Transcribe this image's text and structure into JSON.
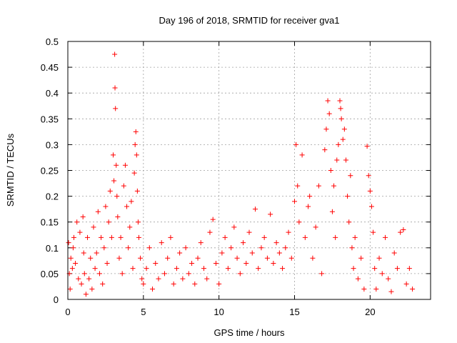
{
  "chart_data": {
    "type": "scatter",
    "title": "Day 196 of 2018, SRMTID for receiver gva1",
    "xlabel": "GPS time / hours",
    "ylabel": "SRMTID / TECUs",
    "xlim": [
      0,
      24
    ],
    "ylim": [
      0,
      0.5
    ],
    "x_ticks": [
      0,
      5,
      10,
      15,
      20
    ],
    "y_ticks": [
      0,
      0.05,
      0.1,
      0.15,
      0.2,
      0.25,
      0.3,
      0.35,
      0.4,
      0.45,
      0.5
    ],
    "x_tick_labels": [
      "0",
      "5",
      "10",
      "15",
      "20"
    ],
    "y_tick_labels": [
      "0",
      "0.05",
      "0.1",
      "0.15",
      "0.2",
      "0.25",
      "0.3",
      "0.35",
      "0.4",
      "0.45",
      "0.5"
    ],
    "grid": true,
    "marker": "+",
    "series": [
      {
        "name": "gva1",
        "color": "#ff0000",
        "x": [
          0.05,
          0.1,
          0.15,
          0.2,
          0.3,
          0.35,
          0.4,
          0.5,
          0.6,
          0.7,
          0.8,
          0.9,
          1.0,
          1.05,
          1.1,
          1.2,
          1.3,
          1.4,
          1.5,
          1.6,
          1.7,
          1.8,
          1.9,
          2.0,
          2.1,
          2.2,
          2.3,
          2.4,
          2.5,
          2.6,
          2.7,
          2.8,
          2.9,
          3.0,
          3.05,
          3.1,
          3.12,
          3.15,
          3.2,
          3.25,
          3.3,
          3.4,
          3.5,
          3.6,
          3.7,
          3.8,
          3.9,
          4.0,
          4.1,
          4.2,
          4.3,
          4.4,
          4.45,
          4.5,
          4.55,
          4.6,
          4.65,
          4.7,
          4.8,
          4.9,
          5.0,
          5.2,
          5.4,
          5.6,
          5.8,
          6.0,
          6.2,
          6.4,
          6.6,
          6.8,
          7.0,
          7.2,
          7.4,
          7.6,
          7.8,
          8.0,
          8.2,
          8.4,
          8.6,
          8.8,
          9.0,
          9.2,
          9.4,
          9.6,
          9.8,
          10.0,
          10.2,
          10.4,
          10.6,
          10.8,
          11.0,
          11.2,
          11.4,
          11.6,
          11.8,
          12.0,
          12.2,
          12.4,
          12.6,
          12.8,
          13.0,
          13.2,
          13.4,
          13.6,
          13.8,
          14.0,
          14.2,
          14.4,
          14.6,
          14.8,
          15.0,
          15.1,
          15.2,
          15.3,
          15.5,
          15.7,
          15.9,
          16.0,
          16.2,
          16.4,
          16.6,
          16.8,
          17.0,
          17.1,
          17.2,
          17.3,
          17.4,
          17.5,
          17.6,
          17.7,
          17.8,
          17.9,
          18.0,
          18.05,
          18.1,
          18.2,
          18.3,
          18.4,
          18.5,
          18.6,
          18.7,
          18.8,
          18.9,
          19.0,
          19.2,
          19.4,
          19.6,
          19.8,
          19.9,
          20.0,
          20.1,
          20.2,
          20.3,
          20.4,
          20.6,
          20.8,
          21.0,
          21.2,
          21.4,
          21.6,
          21.8,
          22.0,
          22.2,
          22.4,
          22.6,
          22.8
        ],
        "y": [
          0.11,
          0.05,
          0.02,
          0.08,
          0.06,
          0.1,
          0.12,
          0.07,
          0.15,
          0.04,
          0.13,
          0.03,
          0.16,
          0.09,
          0.05,
          0.01,
          0.12,
          0.04,
          0.08,
          0.02,
          0.14,
          0.06,
          0.09,
          0.17,
          0.05,
          0.12,
          0.03,
          0.1,
          0.18,
          0.07,
          0.15,
          0.21,
          0.12,
          0.28,
          0.23,
          0.475,
          0.41,
          0.37,
          0.26,
          0.2,
          0.16,
          0.08,
          0.12,
          0.05,
          0.22,
          0.26,
          0.18,
          0.1,
          0.14,
          0.19,
          0.06,
          0.245,
          0.3,
          0.325,
          0.28,
          0.21,
          0.15,
          0.12,
          0.08,
          0.04,
          0.03,
          0.06,
          0.1,
          0.02,
          0.07,
          0.04,
          0.11,
          0.05,
          0.08,
          0.12,
          0.03,
          0.06,
          0.09,
          0.04,
          0.1,
          0.05,
          0.07,
          0.03,
          0.08,
          0.11,
          0.06,
          0.04,
          0.13,
          0.155,
          0.07,
          0.03,
          0.09,
          0.12,
          0.06,
          0.1,
          0.14,
          0.08,
          0.05,
          0.11,
          0.07,
          0.13,
          0.09,
          0.175,
          0.06,
          0.1,
          0.12,
          0.08,
          0.165,
          0.07,
          0.11,
          0.09,
          0.06,
          0.1,
          0.13,
          0.08,
          0.19,
          0.3,
          0.22,
          0.15,
          0.28,
          0.12,
          0.18,
          0.2,
          0.08,
          0.14,
          0.22,
          0.05,
          0.29,
          0.33,
          0.385,
          0.36,
          0.25,
          0.17,
          0.22,
          0.12,
          0.27,
          0.3,
          0.385,
          0.37,
          0.35,
          0.31,
          0.33,
          0.27,
          0.2,
          0.15,
          0.24,
          0.1,
          0.06,
          0.12,
          0.04,
          0.08,
          0.02,
          0.297,
          0.24,
          0.21,
          0.18,
          0.13,
          0.06,
          0.02,
          0.08,
          0.05,
          0.12,
          0.04,
          0.015,
          0.09,
          0.06,
          0.13,
          0.135,
          0.03,
          0.06,
          0.02
        ]
      }
    ]
  }
}
